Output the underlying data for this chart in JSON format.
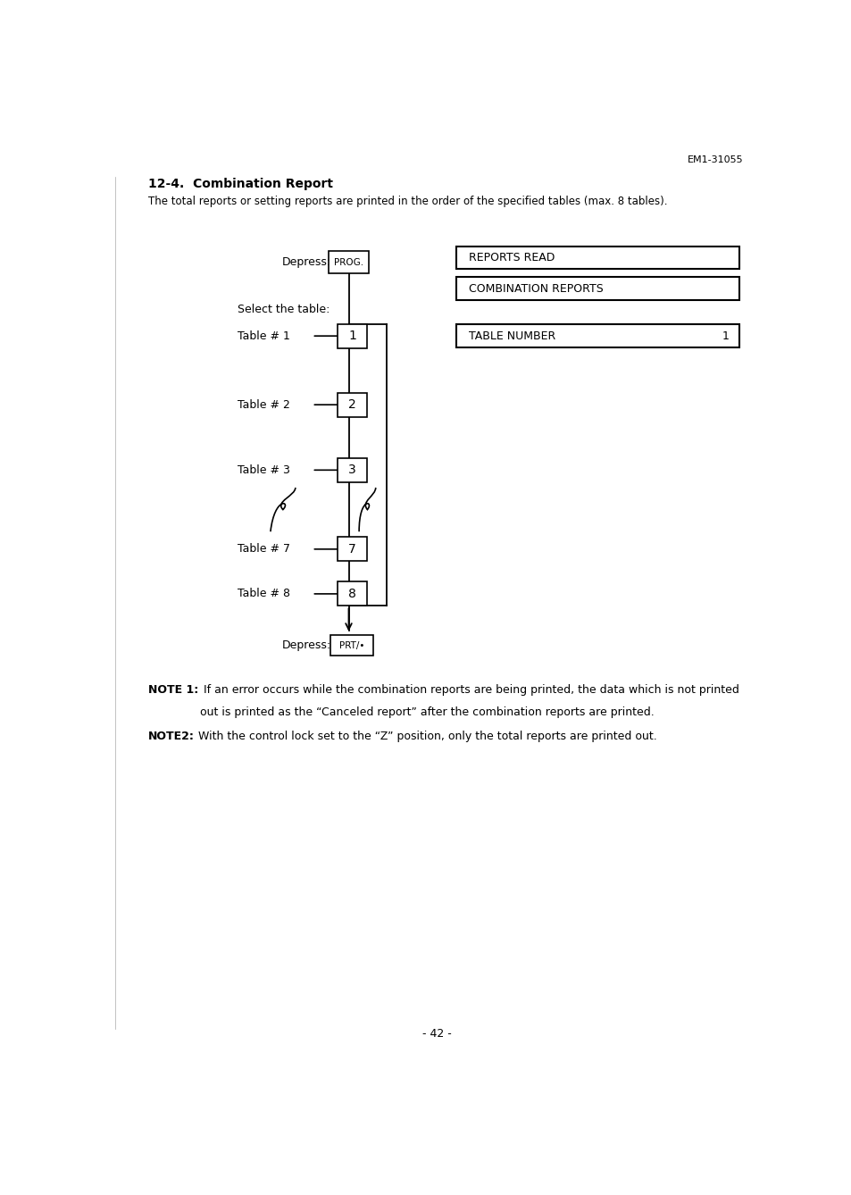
{
  "title": "12-4.  Combination Report",
  "header_ref": "EM1-31055",
  "intro_text": "The total reports or setting reports are printed in the order of the specified tables (max. 8 tables).",
  "depress_label": "Depress:",
  "prog_box_label": "PROG.",
  "select_table_label": "Select the table:",
  "table_labels": [
    "Table # 1",
    "Table # 2",
    "Table # 3",
    "Table # 7",
    "Table # 8"
  ],
  "table_numbers": [
    "1",
    "2",
    "3",
    "7",
    "8"
  ],
  "depress2_label": "Depress:",
  "prt_box_label": "PRT/•",
  "right_boxes": [
    {
      "label": "REPORTS READ",
      "value": ""
    },
    {
      "label": "COMBINATION REPORTS",
      "value": ""
    },
    {
      "label": "TABLE NUMBER",
      "value": "1"
    }
  ],
  "note1_bold": "NOTE 1:",
  "note1_text": " If an error occurs while the combination reports are being printed, the data which is not printed",
  "note1_text2": "out is printed as the “Canceled report” after the combination reports are printed.",
  "note2_bold": "NOTE2:",
  "note2_text": " With the control lock set to the “Z” position, only the total reports are printed out.",
  "page_number": "- 42 -",
  "bg_color": "#ffffff",
  "text_color": "#000000",
  "box_color": "#000000"
}
